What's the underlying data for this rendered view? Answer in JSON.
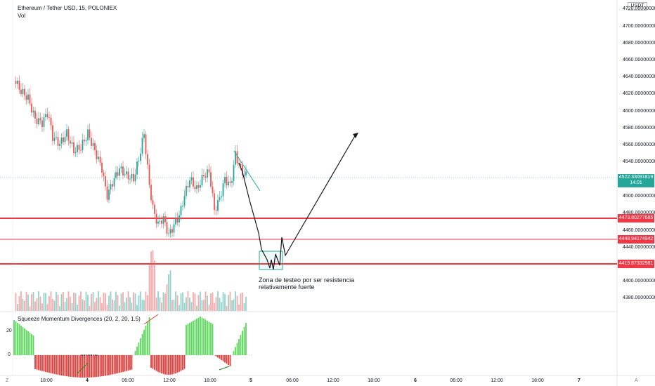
{
  "legend": {
    "title": "Ethereum / Tether USD, 15, POLONIEX",
    "volume_label": "Vol"
  },
  "indicator": {
    "label": "Squeeze Momentum Divergences (20, 2, 20, 1.5)",
    "ticks": [
      "20",
      "0"
    ]
  },
  "currency": "USDT",
  "price_axis": [
    "4720.00000000",
    "4700.00000000",
    "4680.00000000",
    "4660.00000000",
    "4640.00000000",
    "4620.00000000",
    "4600.00000000",
    "4580.00000000",
    "4560.00000000",
    "4540.00000000",
    "4500.00000000",
    "4480.00000000",
    "4460.00000000",
    "4440.00000000",
    "4400.00000000",
    "4380.00000000"
  ],
  "current_price": {
    "value": "4522.33091819",
    "countdown": "14:01"
  },
  "levels": [
    "4473.80277685",
    "4448.94174942",
    "4419.87332981"
  ],
  "time_axis": [
    {
      "label": "18:00",
      "bold": false
    },
    {
      "label": "4",
      "bold": true
    },
    {
      "label": "06:00",
      "bold": false
    },
    {
      "label": "12:00",
      "bold": false
    },
    {
      "label": "18:00",
      "bold": false
    },
    {
      "label": "5",
      "bold": true
    },
    {
      "label": "06:00",
      "bold": false
    },
    {
      "label": "12:00",
      "bold": false
    },
    {
      "label": "18:00",
      "bold": false
    },
    {
      "label": "6",
      "bold": true
    },
    {
      "label": "06:00",
      "bold": false
    },
    {
      "label": "12:00",
      "bold": false
    },
    {
      "label": "18:00",
      "bold": false
    },
    {
      "label": "7",
      "bold": true
    }
  ],
  "annotation": [
    "Zona de testeo por ser resistencia",
    "relativamente fuerte"
  ],
  "corner_left": "Z",
  "corner_right": "A",
  "colors": {
    "up": "#26a69a",
    "down": "#ef5350",
    "level": "#f23645",
    "mom_up": "#5bd65b",
    "mom_down": "#e53935"
  }
}
